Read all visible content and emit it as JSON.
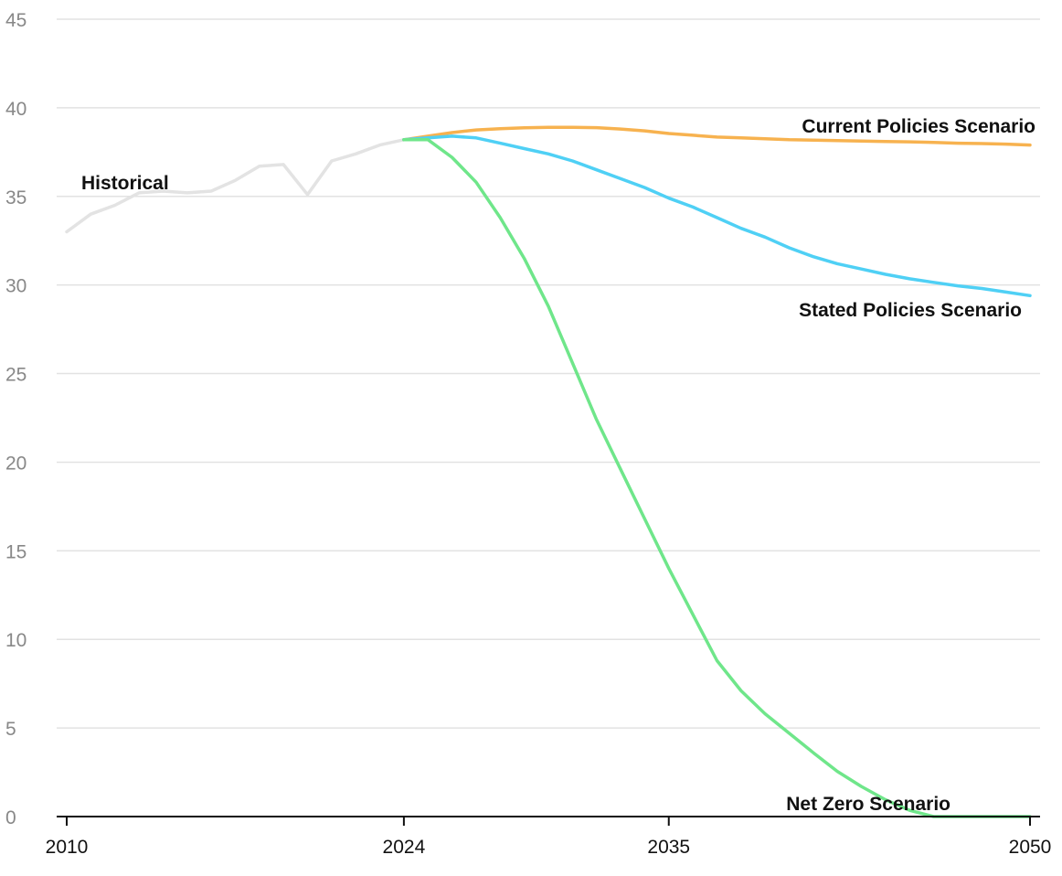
{
  "chart_data": {
    "type": "line",
    "title": "",
    "xlabel": "",
    "ylabel": "",
    "xlim": [
      2010,
      2050
    ],
    "ylim": [
      0,
      45
    ],
    "y_ticks": [
      0,
      5,
      10,
      15,
      20,
      25,
      30,
      35,
      40,
      45
    ],
    "x_ticks": [
      2010,
      2024,
      2035,
      2050
    ],
    "grid": "horizontal",
    "series": [
      {
        "name": "Historical",
        "color": "#e3e3e3",
        "x": [
          2010,
          2011,
          2012,
          2013,
          2014,
          2015,
          2016,
          2017,
          2018,
          2019,
          2020,
          2021,
          2022,
          2023,
          2024
        ],
        "y": [
          33.0,
          34.0,
          34.5,
          35.2,
          35.3,
          35.2,
          35.3,
          35.9,
          36.7,
          36.8,
          35.1,
          37.0,
          37.4,
          37.9,
          38.2
        ]
      },
      {
        "name": "Current Policies Scenario",
        "color": "#f7b24f",
        "x": [
          2024,
          2025,
          2026,
          2027,
          2028,
          2029,
          2030,
          2031,
          2032,
          2033,
          2034,
          2035,
          2036,
          2037,
          2038,
          2039,
          2040,
          2041,
          2042,
          2043,
          2044,
          2045,
          2046,
          2047,
          2048,
          2049,
          2050
        ],
        "y": [
          38.2,
          38.4,
          38.6,
          38.75,
          38.82,
          38.87,
          38.9,
          38.9,
          38.88,
          38.8,
          38.7,
          38.55,
          38.45,
          38.35,
          38.3,
          38.25,
          38.2,
          38.18,
          38.15,
          38.12,
          38.1,
          38.08,
          38.05,
          38.0,
          37.98,
          37.95,
          37.9
        ]
      },
      {
        "name": "Stated Policies Scenario",
        "color": "#4fd0f5",
        "x": [
          2024,
          2025,
          2026,
          2027,
          2028,
          2029,
          2030,
          2031,
          2032,
          2033,
          2034,
          2035,
          2036,
          2037,
          2038,
          2039,
          2040,
          2041,
          2042,
          2043,
          2044,
          2045,
          2046,
          2047,
          2048,
          2049,
          2050
        ],
        "y": [
          38.2,
          38.3,
          38.4,
          38.3,
          38.0,
          37.7,
          37.4,
          37.0,
          36.5,
          36.0,
          35.5,
          34.9,
          34.4,
          33.8,
          33.2,
          32.7,
          32.1,
          31.6,
          31.2,
          30.9,
          30.6,
          30.35,
          30.15,
          29.95,
          29.8,
          29.6,
          29.4
        ]
      },
      {
        "name": "Net Zero Scenario",
        "color": "#6fe68a",
        "x": [
          2024,
          2025,
          2026,
          2027,
          2028,
          2029,
          2030,
          2031,
          2032,
          2033,
          2034,
          2035,
          2036,
          2037,
          2038,
          2039,
          2040,
          2041,
          2042,
          2043,
          2044,
          2045,
          2046,
          2047,
          2048,
          2049,
          2050
        ],
        "y": [
          38.2,
          38.2,
          37.2,
          35.8,
          33.8,
          31.5,
          28.8,
          25.6,
          22.4,
          19.6,
          16.8,
          14.0,
          11.4,
          8.8,
          7.1,
          5.8,
          4.7,
          3.6,
          2.55,
          1.7,
          0.95,
          0.35,
          0.0,
          0.0,
          0.0,
          0.0,
          0.0
        ]
      }
    ],
    "annotations": [
      {
        "text": "Historical",
        "series": "Historical"
      },
      {
        "text": "Current Policies Scenario",
        "series": "Current Policies Scenario"
      },
      {
        "text": "Stated Policies Scenario",
        "series": "Stated Policies Scenario"
      },
      {
        "text": "Net Zero Scenario",
        "series": "Net Zero Scenario"
      }
    ]
  }
}
